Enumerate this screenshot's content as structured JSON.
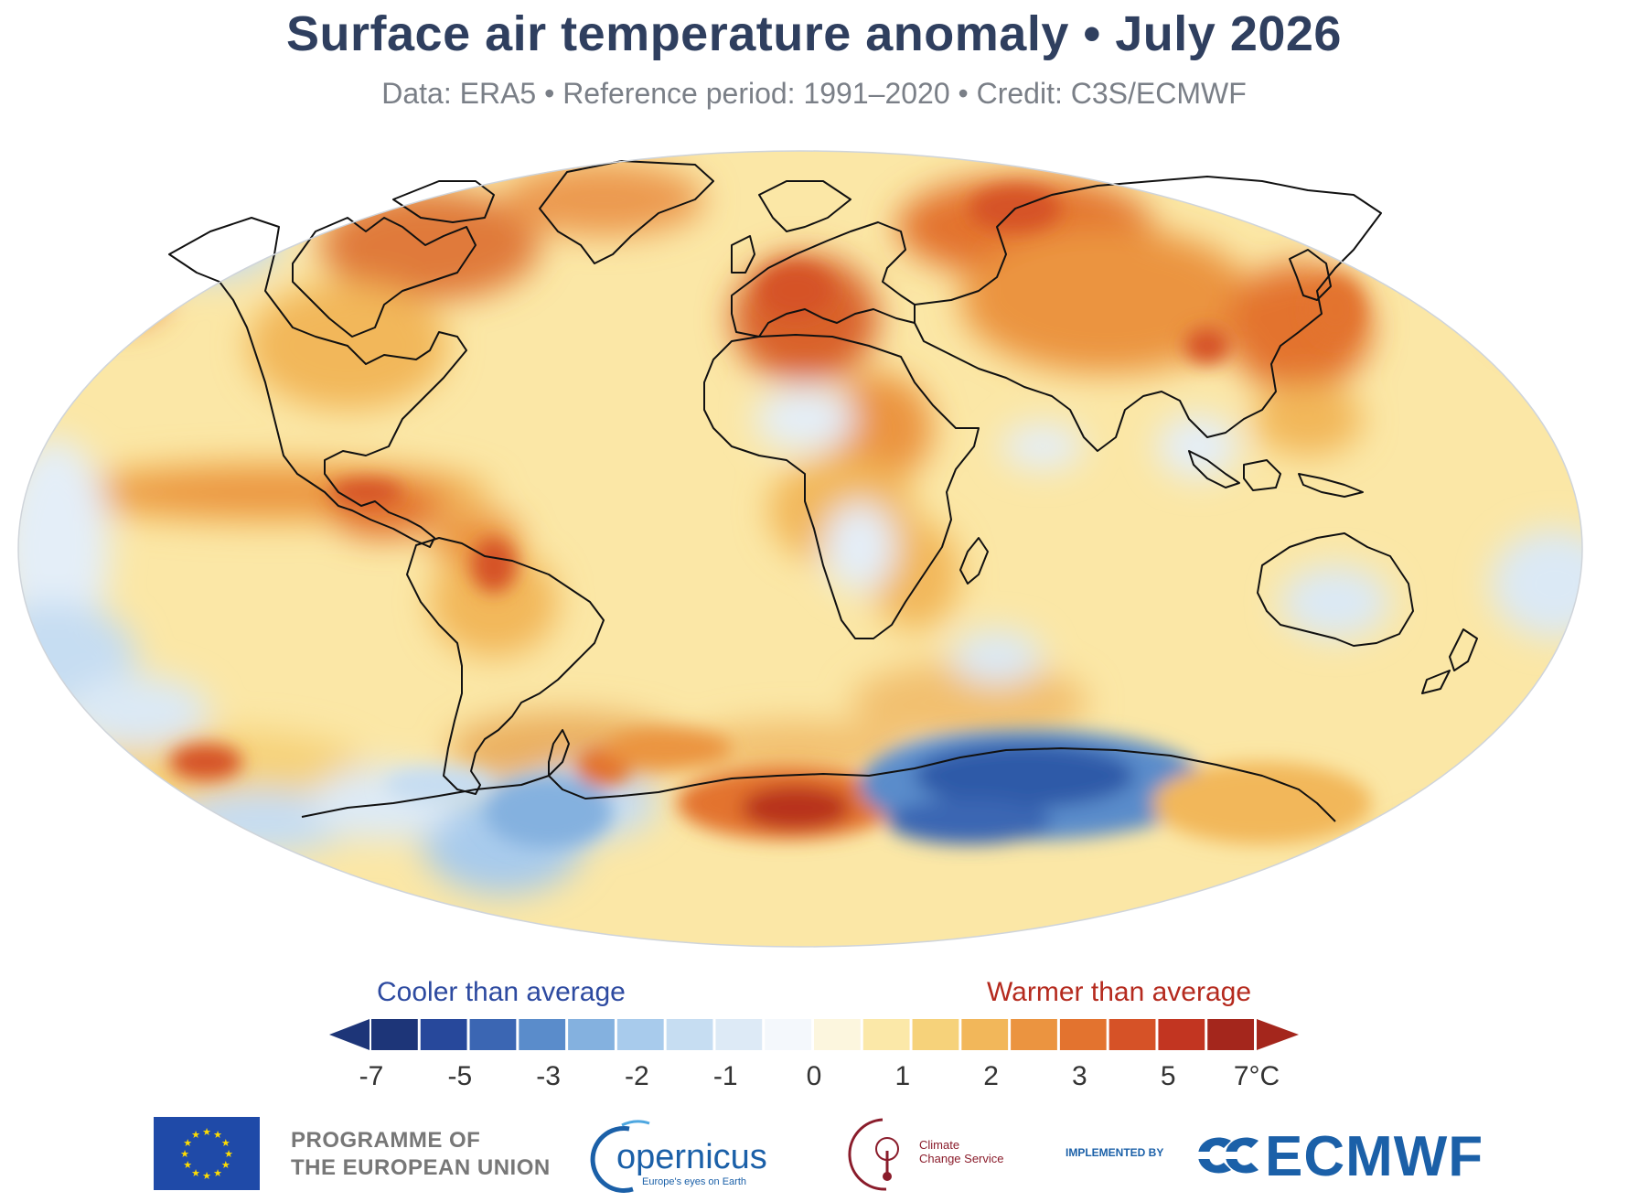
{
  "header": {
    "title": "Surface air temperature anomaly • July 2026",
    "subtitle": "Data: ERA5 • Reference period: 1991–2020 • Credit: C3S/ECMWF"
  },
  "map": {
    "projection": "Robinson (world)",
    "variable": "surface air temperature anomaly",
    "background_color": "#fbe7a6",
    "regions": [
      {
        "name": "Canadian Arctic / Hudson Bay",
        "anomaly_level": "warm",
        "color": "#e07a3a"
      },
      {
        "name": "Western Europe / Mediterranean",
        "anomaly_level": "warm",
        "color": "#d9622b"
      },
      {
        "name": "Siberia",
        "anomaly_level": "warm",
        "color": "#e07a3a"
      },
      {
        "name": "Central Africa",
        "anomaly_level": "warm",
        "color": "#e38a45"
      },
      {
        "name": "Eastern Pacific (El Niño region)",
        "anomaly_level": "warm",
        "color": "#e5873f"
      },
      {
        "name": "Alaska / Bering",
        "anomaly_level": "cool",
        "color": "#cfe2f3"
      },
      {
        "name": "Australia interior",
        "anomaly_level": "slightly cool",
        "color": "#dbe9f5"
      },
      {
        "name": "East Antarctica",
        "anomaly_level": "very cool",
        "color": "#2d5aa8"
      },
      {
        "name": "West Antarctica / Ross Sea",
        "anomaly_level": "very warm",
        "color": "#b8311e"
      },
      {
        "name": "Southern Patagonia",
        "anomaly_level": "cool",
        "color": "#9ec4e6"
      }
    ]
  },
  "legend": {
    "cool_label": "Cooler than average",
    "warm_label": "Warmer than average",
    "colors": [
      "#1d3578",
      "#27489b",
      "#3b66b3",
      "#5a8ccb",
      "#84b1df",
      "#a8cbec",
      "#c6ddf2",
      "#ddeaf6",
      "#f4f8fc",
      "#fcf6de",
      "#fbe8a8",
      "#f6d27a",
      "#f2b75a",
      "#eb9440",
      "#e3732f",
      "#d65227",
      "#c23521",
      "#a4261c"
    ],
    "tick_labels": [
      "-7",
      "-5",
      "-3",
      "-2",
      "-1",
      "0",
      "1",
      "2",
      "3",
      "5",
      "7°C"
    ]
  },
  "footer": {
    "eu_program_line1": "PROGRAMME OF",
    "eu_program_line2": "THE EUROPEAN UNION",
    "copernicus_name": "opernicus",
    "copernicus_tagline": "Europe's eyes on Earth",
    "c3s_line1": "Climate",
    "c3s_line2": "Change Service",
    "implemented_by": "IMPLEMENTED BY",
    "ecmwf": "ECMWF"
  }
}
